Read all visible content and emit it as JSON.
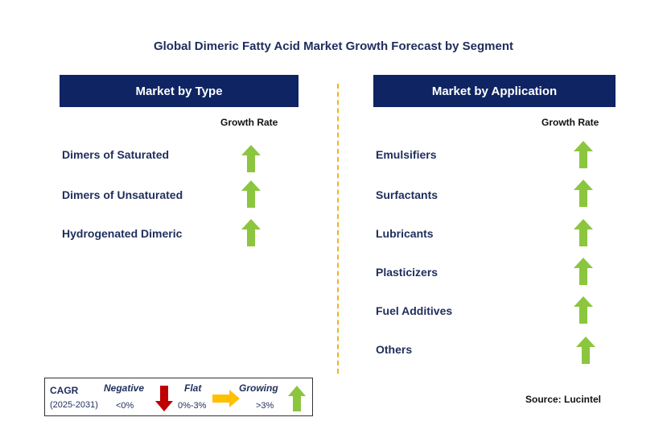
{
  "title": "Global Dimeric Fatty Acid Market Growth Forecast by Segment",
  "left_panel": {
    "header": "Market by Type",
    "growth_label": "Growth Rate",
    "items": [
      {
        "label": "Dimers of Saturated",
        "trend": "growing"
      },
      {
        "label": "Dimers of Unsaturated",
        "trend": "growing"
      },
      {
        "label": "Hydrogenated Dimeric",
        "trend": "growing"
      }
    ]
  },
  "right_panel": {
    "header": "Market by Application",
    "growth_label": "Growth Rate",
    "items": [
      {
        "label": "Emulsifiers",
        "trend": "growing"
      },
      {
        "label": "Surfactants",
        "trend": "growing"
      },
      {
        "label": "Lubricants",
        "trend": "growing"
      },
      {
        "label": "Plasticizers",
        "trend": "growing"
      },
      {
        "label": "Fuel Additives",
        "trend": "growing"
      },
      {
        "label": "Others",
        "trend": "growing"
      }
    ]
  },
  "legend": {
    "cagr": "CAGR",
    "years": "(2025-2031)",
    "negative": {
      "label": "Negative",
      "range": "<0%"
    },
    "flat": {
      "label": "Flat",
      "range": "0%-3%"
    },
    "growing": {
      "label": "Growing",
      "range": ">3%"
    }
  },
  "source": "Source: Lucintel",
  "colors": {
    "header_bg": "#0f2463",
    "text_navy": "#1f2d5c",
    "growing_green": "#8cc63f",
    "negative_red": "#c00000",
    "flat_yellow": "#ffc000",
    "divider": "#f2b21c"
  },
  "icons": {
    "growing": "up-arrow-icon",
    "negative": "down-arrow-icon",
    "flat": "right-arrow-icon"
  }
}
